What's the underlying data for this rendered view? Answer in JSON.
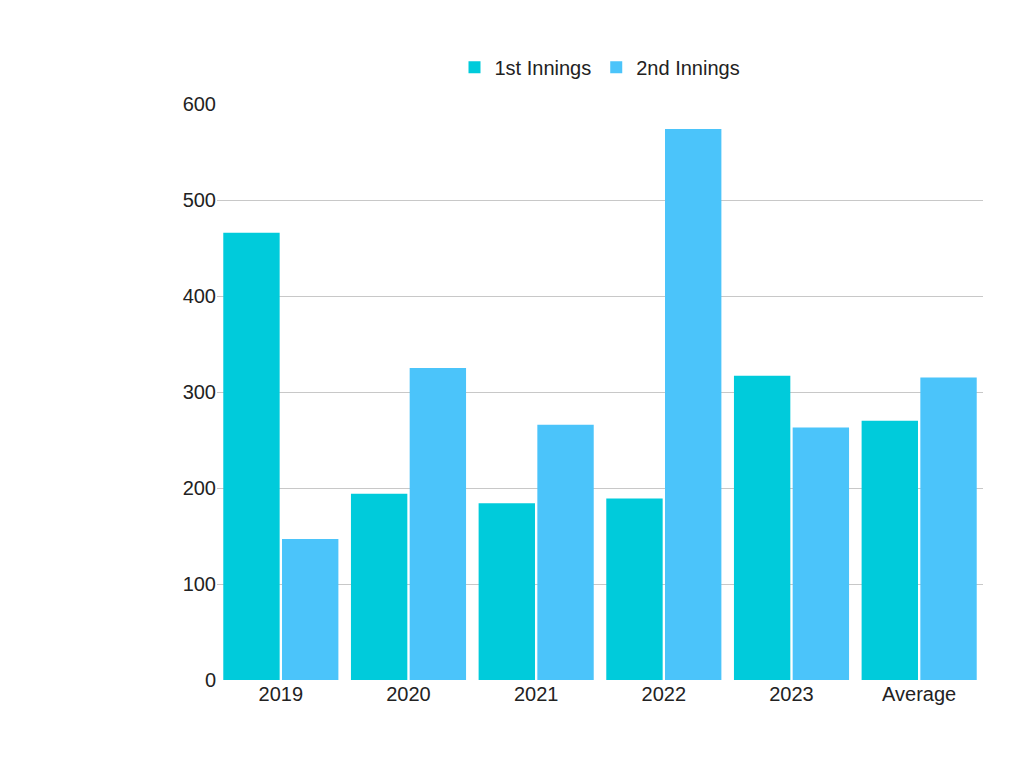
{
  "chart_data": {
    "type": "bar",
    "categories": [
      "2019",
      "2020",
      "2021",
      "2022",
      "2023",
      "Average"
    ],
    "series": [
      {
        "name": "1st Innings",
        "color": "#00CBDB",
        "values": [
          466,
          194,
          184,
          189,
          317,
          270
        ]
      },
      {
        "name": "2nd Innings",
        "color": "#4BC4FA",
        "values": [
          147,
          325,
          266,
          574,
          263,
          315
        ]
      }
    ],
    "ylim": [
      0,
      600
    ],
    "yticks": [
      0,
      100,
      200,
      300,
      400,
      500,
      600
    ],
    "grid": true,
    "legend": "top"
  }
}
